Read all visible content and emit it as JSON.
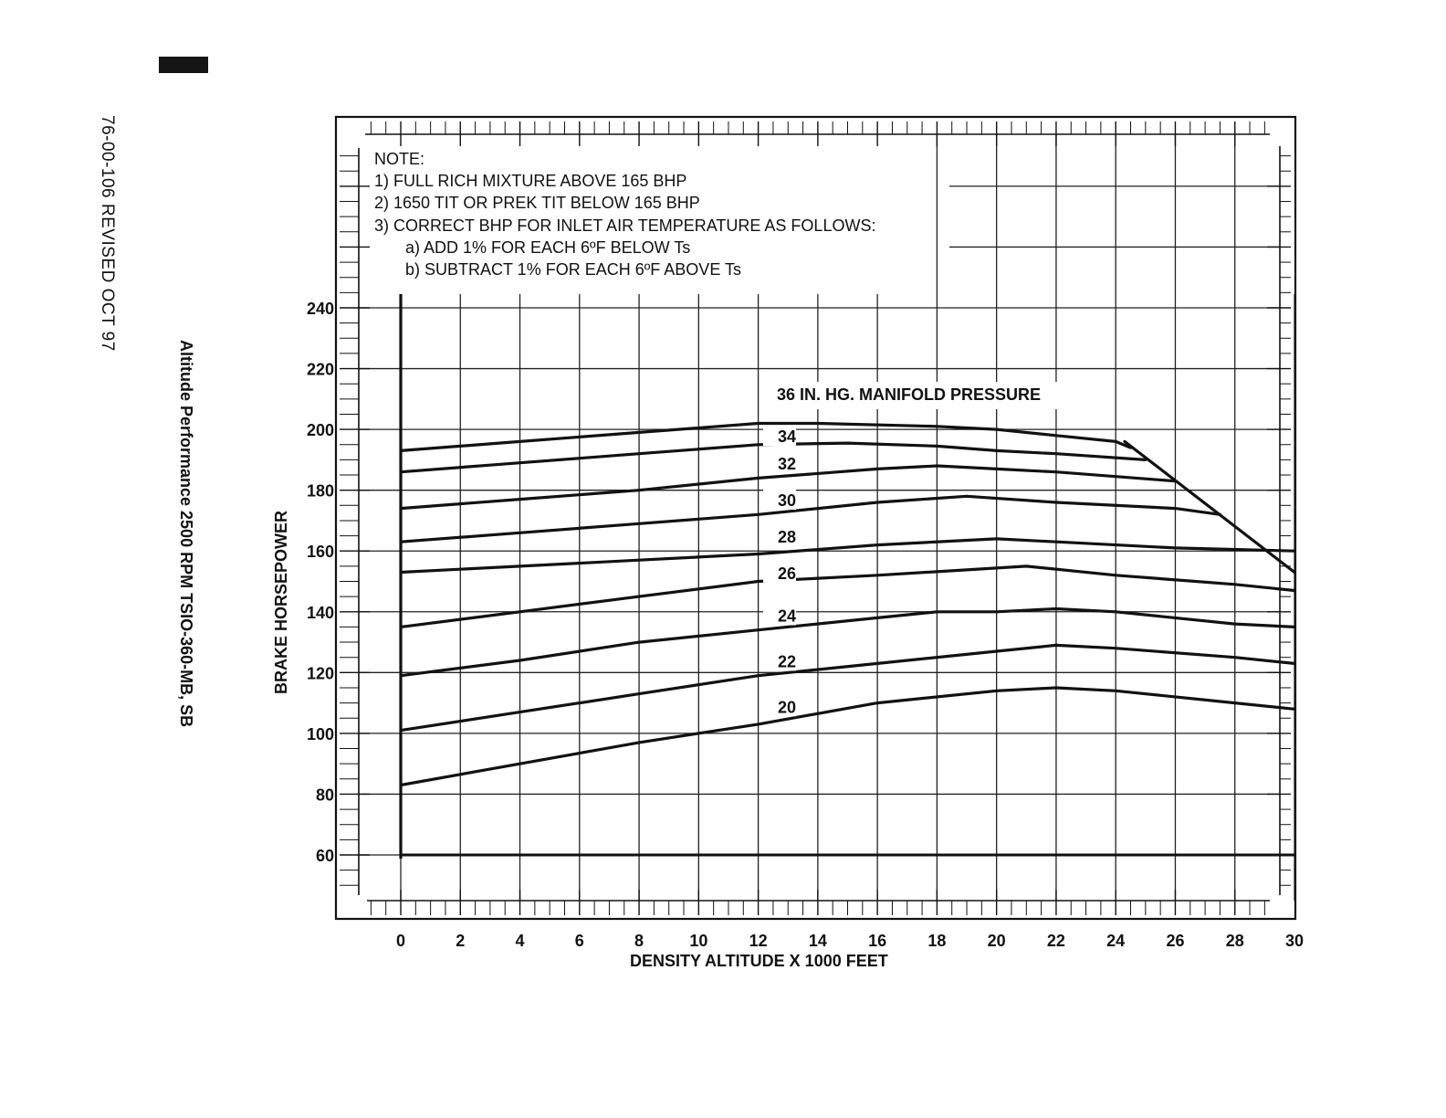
{
  "page": {
    "doc_ref": "76-00-106 REVISED OCT 97",
    "side_title": "Altitude Performance 2500 RPM TSIO-360-MB, SB"
  },
  "note": {
    "header": "NOTE:",
    "items": [
      "1) FULL RICH MIXTURE ABOVE 165 BHP",
      "2) 1650 TIT OR PREK TIT BELOW 165 BHP",
      "3) CORRECT BHP FOR INLET AIR TEMPERATURE AS FOLLOWS:"
    ],
    "sub_items": [
      "a) ADD 1% FOR EACH 6ºF BELOW Ts",
      "b) SUBTRACT 1% FOR EACH 6ºF ABOVE Ts"
    ]
  },
  "chart_data": {
    "type": "line",
    "title": "36 IN. HG. MANIFOLD PRESSURE",
    "xlabel": "DENSITY ALTITUDE X 1000 FEET",
    "ylabel": "BRAKE HORSEPOWER",
    "xlim": [
      0,
      30
    ],
    "ylim": [
      60,
      240
    ],
    "x_ticks": [
      0,
      2,
      4,
      6,
      8,
      10,
      12,
      14,
      16,
      18,
      20,
      22,
      24,
      26,
      28,
      30
    ],
    "y_ticks": [
      60,
      80,
      100,
      120,
      140,
      160,
      180,
      200,
      220,
      240
    ],
    "grid": true,
    "series": [
      {
        "name": "36",
        "x": [
          0,
          4,
          8,
          12,
          14,
          18,
          20,
          22,
          24,
          24.5
        ],
        "values": [
          193,
          196,
          199,
          202,
          202,
          201,
          200,
          198,
          196,
          194
        ]
      },
      {
        "name": "34",
        "x": [
          0,
          4,
          8,
          12,
          15,
          18,
          20,
          22,
          25
        ],
        "values": [
          186,
          189,
          192,
          195,
          195.5,
          194.5,
          193,
          192,
          190
        ]
      },
      {
        "name": "32",
        "x": [
          0,
          4,
          8,
          12,
          16,
          18,
          20,
          22,
          26
        ],
        "values": [
          174,
          177,
          180,
          184,
          187,
          188,
          187,
          186,
          183
        ]
      },
      {
        "name": "30",
        "x": [
          0,
          4,
          8,
          12,
          16,
          19,
          22,
          26,
          27.5
        ],
        "values": [
          163,
          166,
          169,
          172,
          176,
          178,
          176,
          174,
          172
        ]
      },
      {
        "name": "28",
        "x": [
          0,
          4,
          8,
          12,
          16,
          20,
          22,
          26,
          30
        ],
        "values": [
          153,
          155,
          157,
          159,
          162,
          164,
          163,
          161,
          160
        ]
      },
      {
        "name": "26",
        "x": [
          0,
          4,
          8,
          12,
          16,
          21,
          24,
          28,
          30
        ],
        "values": [
          135,
          140,
          145,
          150,
          152,
          155,
          152,
          149,
          147
        ]
      },
      {
        "name": "24",
        "x": [
          0,
          4,
          8,
          12,
          16,
          18,
          20,
          22,
          24,
          28,
          30
        ],
        "values": [
          119,
          124,
          130,
          134,
          138,
          140,
          140,
          141,
          140,
          136,
          135
        ]
      },
      {
        "name": "22",
        "x": [
          0,
          4,
          8,
          12,
          16,
          20,
          22,
          24,
          28,
          30
        ],
        "values": [
          101,
          107,
          113,
          119,
          123,
          127,
          129,
          128,
          125,
          123
        ]
      },
      {
        "name": "20",
        "x": [
          0,
          4,
          8,
          12,
          16,
          20,
          22,
          24,
          28,
          30
        ],
        "values": [
          83,
          90,
          97,
          103,
          110,
          114,
          115,
          114,
          110,
          108
        ]
      }
    ],
    "limit_line": {
      "x": [
        24.3,
        30
      ],
      "values": [
        196,
        153
      ]
    },
    "baseline": {
      "x": [
        0,
        30
      ],
      "values": [
        60,
        60
      ]
    }
  }
}
